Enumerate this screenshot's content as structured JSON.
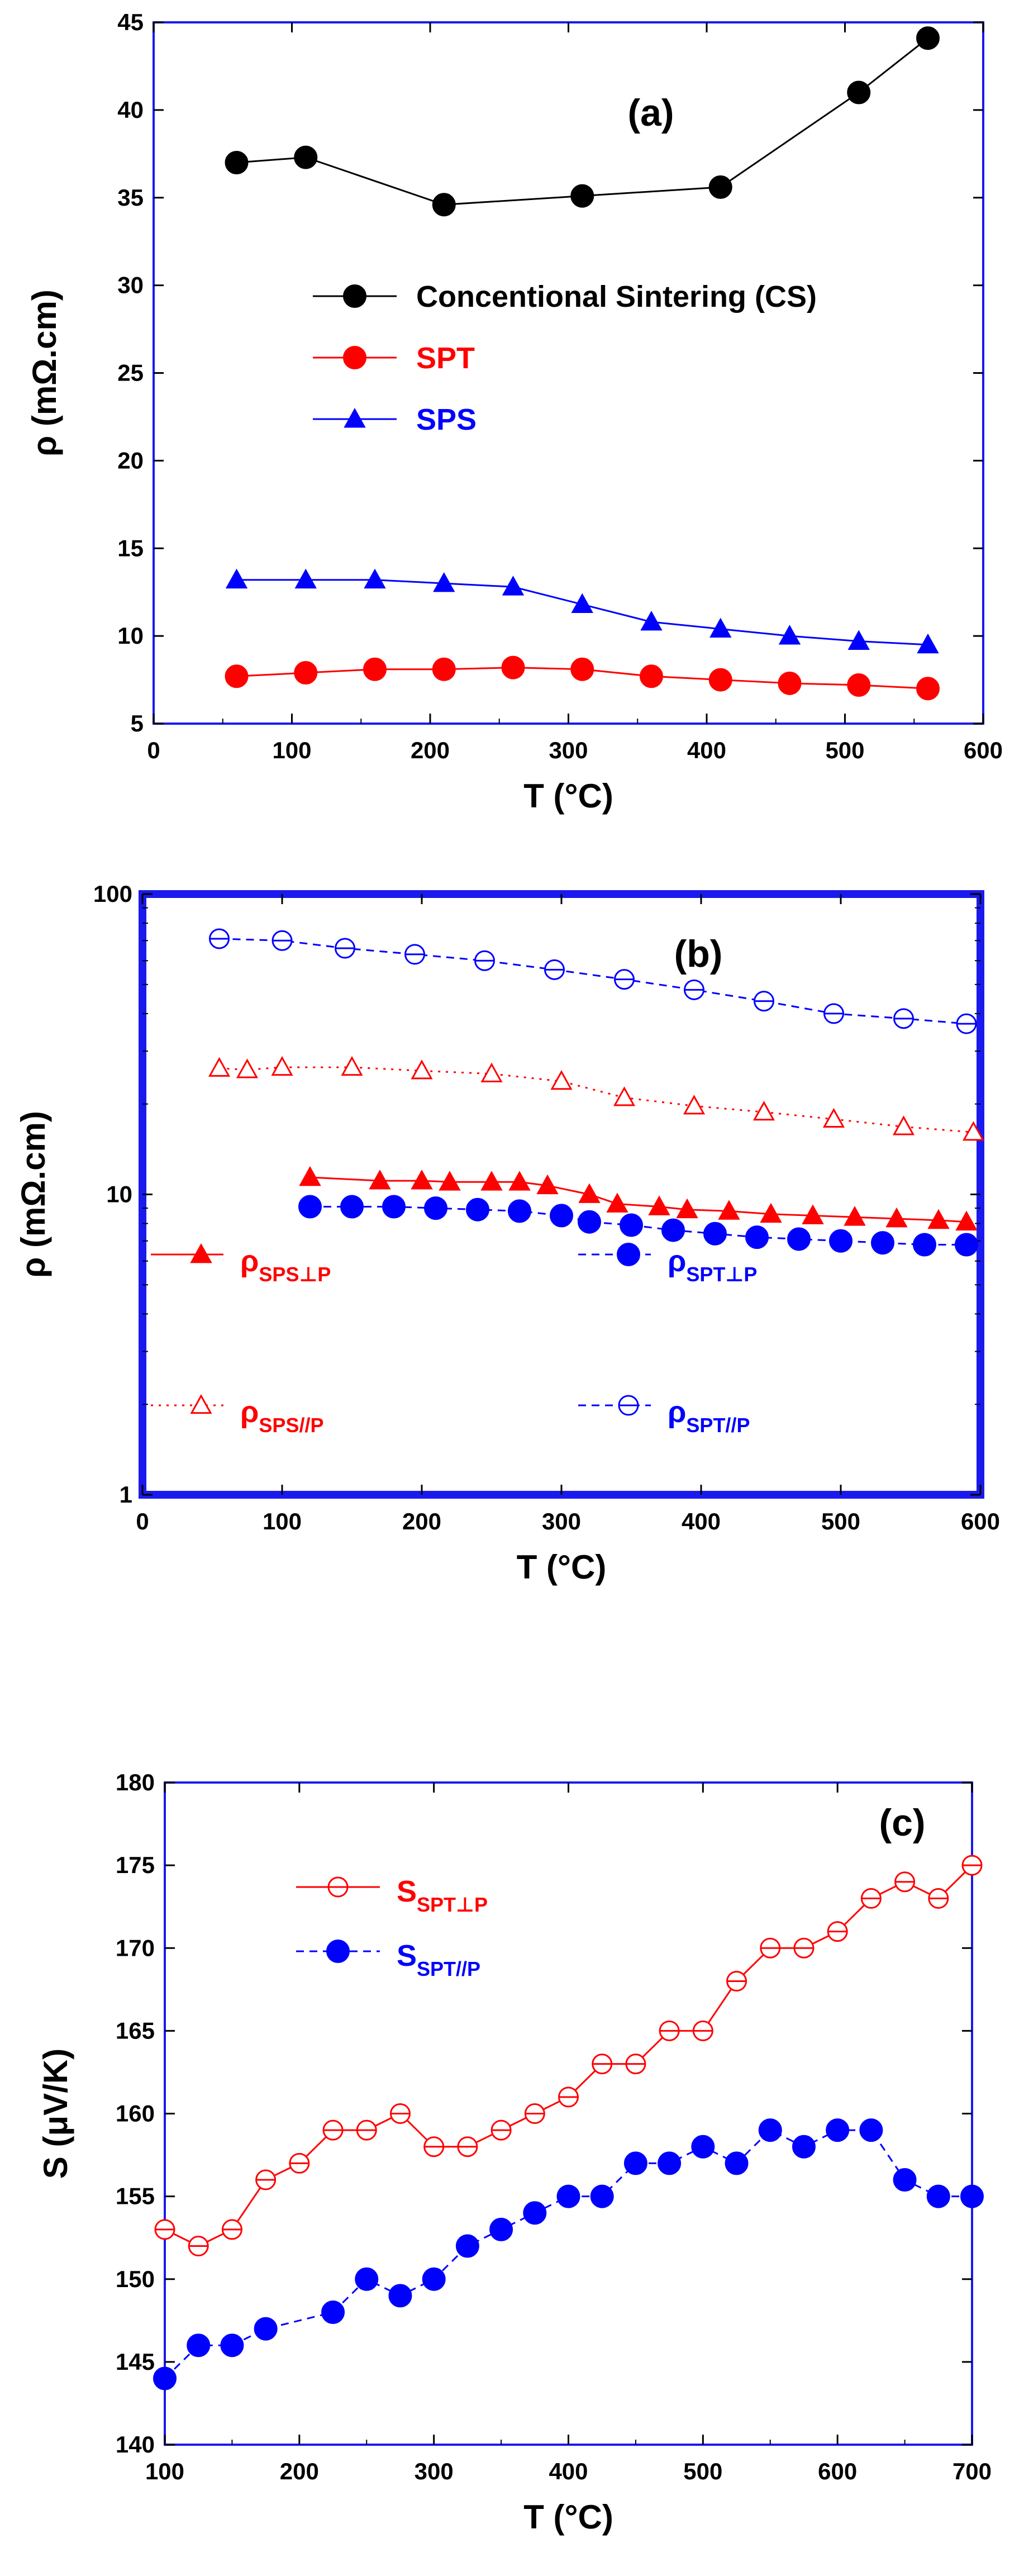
{
  "colors": {
    "black": "#000000",
    "red": "#ff0000",
    "blue": "#0000ff",
    "frame_blue": "#1a1aee"
  },
  "chart_data": [
    {
      "id": "a",
      "type": "line",
      "panel_label": "(a)",
      "xlabel": "T (°C)",
      "ylabel": "ρ (mΩ.cm)",
      "xlim": [
        0,
        600
      ],
      "ylim": [
        5,
        45
      ],
      "xticks": [
        0,
        100,
        200,
        300,
        400,
        500,
        600
      ],
      "yticks": [
        5,
        10,
        15,
        20,
        25,
        30,
        35,
        40,
        45
      ],
      "xtick_labels": [
        "0",
        "100",
        "200",
        "300",
        "400",
        "500",
        "600"
      ],
      "ytick_labels": [
        "5",
        "10",
        "15",
        "20",
        "25",
        "30",
        "35",
        "40",
        "45"
      ],
      "series": [
        {
          "name": "Concentional Sintering (CS)",
          "color": "#000000",
          "marker": "filled-circle",
          "line": "solid",
          "x": [
            60,
            110,
            210,
            310,
            410,
            510,
            560
          ],
          "y": [
            37.0,
            37.3,
            34.6,
            35.1,
            35.6,
            41.0,
            44.1
          ]
        },
        {
          "name": "SPT",
          "color": "#ff0000",
          "marker": "filled-circle",
          "line": "solid",
          "x": [
            60,
            110,
            160,
            210,
            260,
            310,
            360,
            410,
            460,
            510,
            560
          ],
          "y": [
            7.7,
            7.9,
            8.1,
            8.1,
            8.2,
            8.1,
            7.7,
            7.5,
            7.3,
            7.2,
            7.0
          ]
        },
        {
          "name": "SPS",
          "color": "#0000ff",
          "marker": "filled-triangle",
          "line": "solid",
          "x": [
            60,
            110,
            160,
            210,
            260,
            310,
            360,
            410,
            460,
            510,
            560
          ],
          "y": [
            13.2,
            13.2,
            13.2,
            13.0,
            12.8,
            11.8,
            10.8,
            10.4,
            10.0,
            9.7,
            9.5
          ]
        }
      ]
    },
    {
      "id": "b",
      "type": "line",
      "yscale": "log",
      "panel_label": "(b)",
      "xlabel": "T (°C)",
      "ylabel": "ρ (mΩ.cm)",
      "xlim": [
        0,
        600
      ],
      "ylim": [
        1,
        100
      ],
      "xticks": [
        0,
        100,
        200,
        300,
        400,
        500,
        600
      ],
      "yticks": [
        1,
        10,
        100
      ],
      "xtick_labels": [
        "0",
        "100",
        "200",
        "300",
        "400",
        "500",
        "600"
      ],
      "ytick_labels": [
        "1",
        "10",
        "100"
      ],
      "series": [
        {
          "name": "ρ",
          "sub": "SPS⊥P",
          "color": "#ff0000",
          "marker": "filled-triangle",
          "line": "solid",
          "x": [
            120,
            170,
            200,
            220,
            250,
            270,
            290,
            320,
            340,
            370,
            390,
            420,
            450,
            480,
            510,
            540,
            570,
            590
          ],
          "y": [
            11.4,
            11.1,
            11.1,
            11.0,
            11.0,
            11.0,
            10.7,
            10.0,
            9.3,
            9.1,
            8.9,
            8.8,
            8.6,
            8.5,
            8.4,
            8.3,
            8.2,
            8.1
          ]
        },
        {
          "name": "ρ",
          "sub": "SPT⊥P",
          "color": "#0000ff",
          "marker": "filled-circle",
          "line": "dashed",
          "x": [
            120,
            150,
            180,
            210,
            240,
            270,
            300,
            320,
            350,
            380,
            410,
            440,
            470,
            500,
            530,
            560,
            590
          ],
          "y": [
            9.1,
            9.1,
            9.1,
            9.0,
            8.9,
            8.8,
            8.5,
            8.1,
            7.9,
            7.6,
            7.4,
            7.2,
            7.1,
            7.0,
            6.9,
            6.8,
            6.8
          ]
        },
        {
          "name": "ρ",
          "sub": "SPS//P",
          "color": "#ff0000",
          "marker": "open-triangle",
          "line": "dotted",
          "x": [
            55,
            75,
            100,
            150,
            200,
            250,
            300,
            345,
            395,
            445,
            495,
            545,
            595
          ],
          "y": [
            26.3,
            26.0,
            26.5,
            26.5,
            25.8,
            25.2,
            23.8,
            21.0,
            19.7,
            18.8,
            17.8,
            16.8,
            16.1
          ]
        },
        {
          "name": "ρ",
          "sub": "SPT//P",
          "color": "#0000ff",
          "marker": "open-circle",
          "line": "dashed",
          "x": [
            55,
            100,
            145,
            195,
            245,
            295,
            345,
            395,
            445,
            495,
            545,
            590
          ],
          "y": [
            71,
            70,
            66,
            63,
            60,
            56,
            52,
            48,
            44,
            40,
            38.5,
            37
          ]
        }
      ]
    },
    {
      "id": "c",
      "type": "line",
      "panel_label": "(c)",
      "xlabel": "T (°C)",
      "ylabel": "S (μV/K)",
      "xlim": [
        100,
        700
      ],
      "ylim": [
        140,
        180
      ],
      "xticks": [
        100,
        200,
        300,
        400,
        500,
        600,
        700
      ],
      "yticks": [
        140,
        145,
        150,
        155,
        160,
        165,
        170,
        175,
        180
      ],
      "xtick_labels": [
        "100",
        "200",
        "300",
        "400",
        "500",
        "600",
        "700"
      ],
      "ytick_labels": [
        "140",
        "145",
        "150",
        "155",
        "160",
        "165",
        "170",
        "175",
        "180"
      ],
      "series": [
        {
          "name": "S",
          "sub": "SPT⊥P",
          "color": "#ff0000",
          "marker": "open-circle",
          "line": "solid",
          "x": [
            100,
            125,
            150,
            175,
            200,
            225,
            250,
            275,
            300,
            325,
            350,
            375,
            400,
            425,
            450,
            475,
            500,
            525,
            550,
            575,
            600,
            625,
            650,
            675,
            700
          ],
          "y": [
            153,
            152,
            153,
            156,
            157,
            159,
            159,
            160,
            158,
            158,
            159,
            160,
            161,
            163,
            163,
            165,
            165,
            168,
            170,
            170,
            171,
            173,
            174,
            173,
            175
          ]
        },
        {
          "name": "S",
          "sub": "SPT//P",
          "color": "#0000ff",
          "marker": "filled-circle",
          "line": "dashed",
          "x": [
            100,
            125,
            150,
            175,
            225,
            250,
            275,
            300,
            325,
            350,
            375,
            400,
            425,
            450,
            475,
            500,
            525,
            550,
            575,
            600,
            625,
            650,
            675,
            700
          ],
          "y": [
            144,
            146,
            146,
            147,
            148,
            150,
            149,
            150,
            152,
            153,
            154,
            155,
            155,
            157,
            157,
            158,
            157,
            159,
            158,
            159,
            159,
            156,
            155,
            155
          ]
        }
      ]
    }
  ]
}
